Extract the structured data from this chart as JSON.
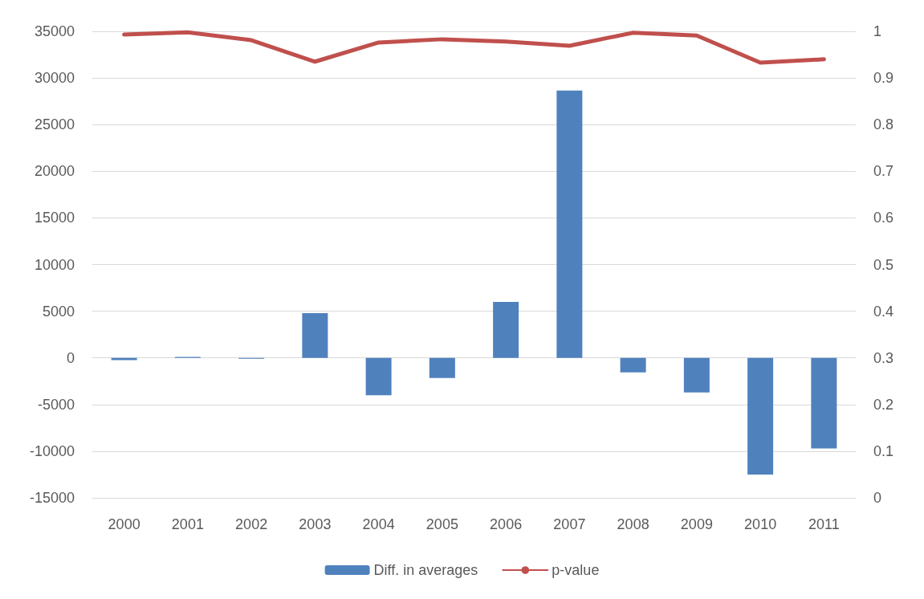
{
  "chart_data": {
    "type": "bar",
    "categories": [
      "2000",
      "2001",
      "2002",
      "2003",
      "2004",
      "2005",
      "2006",
      "2007",
      "2008",
      "2009",
      "2010",
      "2011"
    ],
    "series": [
      {
        "name": "Diff. in averages",
        "color": "#4f81bd",
        "values": [
          -250,
          100,
          -100,
          4800,
          -4000,
          -2150,
          6000,
          28650,
          -1550,
          -3700,
          -12500,
          -9700
        ]
      },
      {
        "name": "p-value",
        "type": "line",
        "axis": "y2",
        "color": "#c0504d",
        "marker": "none",
        "line_style": "solid",
        "values": [
          0.993,
          0.998,
          0.981,
          0.935,
          0.976,
          0.983,
          0.978,
          0.969,
          0.997,
          0.991,
          0.933,
          0.94
        ]
      }
    ],
    "ylim": [
      -15000,
      35000
    ],
    "yticks": [
      -15000,
      -10000,
      -5000,
      0,
      5000,
      10000,
      15000,
      20000,
      25000,
      30000,
      35000
    ],
    "y2lim": [
      0,
      1
    ],
    "y2ticks": [
      0,
      0.1,
      0.2,
      0.3,
      0.4,
      0.5,
      0.6,
      0.7,
      0.8,
      0.9,
      1
    ],
    "grid": "y",
    "legend": "bottom"
  }
}
